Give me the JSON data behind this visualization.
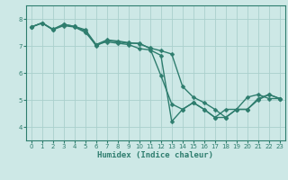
{
  "xlabel": "Humidex (Indice chaleur)",
  "bg_color": "#cde8e6",
  "grid_color": "#aacfcc",
  "line_color": "#2e7d6e",
  "xlim": [
    -0.5,
    23.5
  ],
  "ylim": [
    3.5,
    8.5
  ],
  "yticks": [
    4,
    5,
    6,
    7,
    8
  ],
  "xticks": [
    0,
    1,
    2,
    3,
    4,
    5,
    6,
    7,
    8,
    9,
    10,
    11,
    12,
    13,
    14,
    15,
    16,
    17,
    18,
    19,
    20,
    21,
    22,
    23
  ],
  "line1_x": [
    0,
    1,
    2,
    3,
    4,
    5,
    6,
    7,
    8,
    9,
    10,
    11,
    12,
    13,
    14,
    15,
    16,
    17,
    18,
    19,
    20,
    21,
    22,
    23
  ],
  "line1_y": [
    7.7,
    7.85,
    7.6,
    7.75,
    7.7,
    7.5,
    7.05,
    7.15,
    7.1,
    7.05,
    6.9,
    6.85,
    6.65,
    4.2,
    4.65,
    4.9,
    4.65,
    4.35,
    4.35,
    4.65,
    5.1,
    5.2,
    5.05,
    5.05
  ],
  "line2_x": [
    0,
    1,
    2,
    3,
    4,
    5,
    6,
    7,
    8,
    9,
    10,
    11,
    12,
    13,
    14,
    15,
    16,
    17,
    18,
    19,
    20,
    21,
    22,
    23
  ],
  "line2_y": [
    7.7,
    7.85,
    7.6,
    7.8,
    7.72,
    7.55,
    7.0,
    7.2,
    7.15,
    7.1,
    7.1,
    6.9,
    5.9,
    4.85,
    4.65,
    4.9,
    4.65,
    4.35,
    4.65,
    4.65,
    4.65,
    5.05,
    5.2,
    5.05
  ],
  "line3_x": [
    0,
    1,
    2,
    3,
    4,
    5,
    6,
    7,
    8,
    9,
    10,
    11,
    12,
    13,
    14,
    15,
    16,
    17,
    18,
    19,
    20,
    21,
    22,
    23
  ],
  "line3_y": [
    7.7,
    7.85,
    7.62,
    7.8,
    7.72,
    7.6,
    7.05,
    7.22,
    7.18,
    7.12,
    7.08,
    6.92,
    6.82,
    6.7,
    5.5,
    5.1,
    4.9,
    4.65,
    4.35,
    4.65,
    4.65,
    5.0,
    5.2,
    5.05
  ],
  "marker_size": 2.5,
  "linewidth": 1.0
}
